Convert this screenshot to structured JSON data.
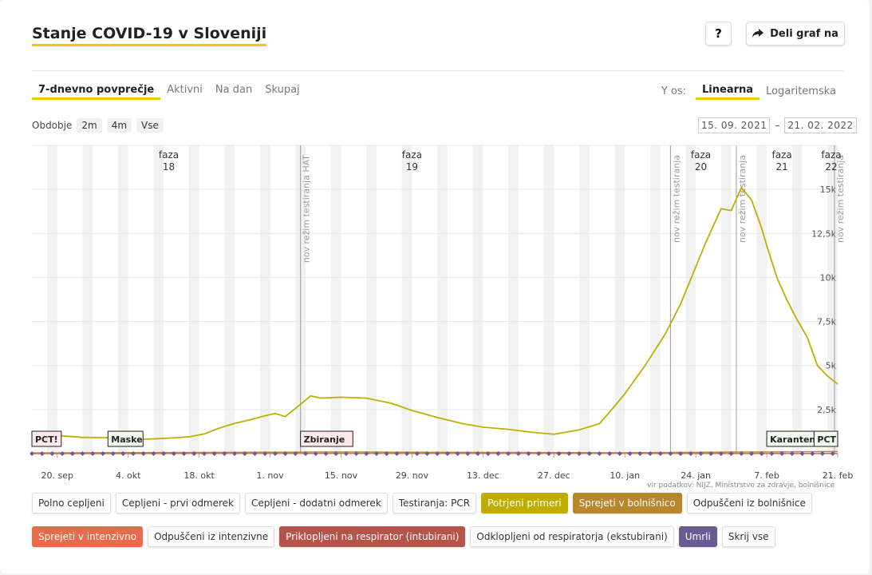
{
  "header": {
    "title": "Stanje COVID-19 v Sloveniji",
    "help_label": "?",
    "share_label": "Deli graf na"
  },
  "tabs": [
    {
      "label": "7-dnevno povprečje",
      "active": true
    },
    {
      "label": "Aktivni",
      "active": false
    },
    {
      "label": "Na dan",
      "active": false
    },
    {
      "label": "Skupaj",
      "active": false
    }
  ],
  "yaxis_toggle": {
    "label": "Y os:",
    "options": [
      {
        "label": "Linearna",
        "active": true
      },
      {
        "label": "Logaritemska",
        "active": false
      }
    ]
  },
  "period": {
    "label": "Obdobje",
    "buttons": [
      "2m",
      "4m",
      "Vse"
    ],
    "from": "15. 09. 2021",
    "dash": "–",
    "to": "21. 02. 2022"
  },
  "source_note": "vir podatkov: NIJZ, Ministrstvo za zdravje, bolnišnice",
  "legend": [
    {
      "label": "Polno cepljeni",
      "on": false,
      "color": ""
    },
    {
      "label": "Cepljeni - prvi odmerek",
      "on": false,
      "color": ""
    },
    {
      "label": "Cepljeni - dodatni odmerek",
      "on": false,
      "color": ""
    },
    {
      "label": "Testiranja: PCR",
      "on": false,
      "color": ""
    },
    {
      "label": "Potrjeni primeri",
      "on": true,
      "color": "#bfae00"
    },
    {
      "label": "Sprejeti v bolnišnico",
      "on": true,
      "color": "#b8862b"
    },
    {
      "label": "Odpuščeni iz bolnišnice",
      "on": false,
      "color": ""
    },
    {
      "label": "Sprejeti v intenzivno",
      "on": true,
      "color": "#e66c4c"
    },
    {
      "label": "Odpuščeni iz intenzivne",
      "on": false,
      "color": ""
    },
    {
      "label": "Priklopljeni na respirator (intubirani)",
      "on": true,
      "color": "#b5544b"
    },
    {
      "label": "Odklopljeni od respiratorja (ekstubirani)",
      "on": false,
      "color": ""
    },
    {
      "label": "Umrli",
      "on": true,
      "color": "#6b5b95"
    },
    {
      "label": "Skrij vse",
      "on": false,
      "color": ""
    }
  ],
  "chart_data": {
    "type": "line",
    "x_start": "2021-09-15",
    "x_end": "2022-02-21",
    "ylim": [
      0,
      17500
    ],
    "y_ticks": [
      2500,
      5000,
      7500,
      10000,
      12500,
      15000
    ],
    "y_tick_labels": [
      "2,5k",
      "5k",
      "7,5k",
      "10k",
      "12,5k",
      "15k"
    ],
    "x_ticks": [
      {
        "date": "2021-09-20",
        "label": "20. sep"
      },
      {
        "date": "2021-10-04",
        "label": "4. okt"
      },
      {
        "date": "2021-10-18",
        "label": "18. okt"
      },
      {
        "date": "2021-11-01",
        "label": "1. nov"
      },
      {
        "date": "2021-11-15",
        "label": "15. nov"
      },
      {
        "date": "2021-11-29",
        "label": "29. nov"
      },
      {
        "date": "2021-12-13",
        "label": "13. dec"
      },
      {
        "date": "2021-12-27",
        "label": "27. dec"
      },
      {
        "date": "2022-01-10",
        "label": "10. jan"
      },
      {
        "date": "2022-01-24",
        "label": "24. jan"
      },
      {
        "date": "2022-02-07",
        "label": "7. feb"
      },
      {
        "date": "2022-02-21",
        "label": "21. feb"
      }
    ],
    "phases": [
      {
        "date": "2021-10-12",
        "label1": "faza",
        "label2": "18"
      },
      {
        "date": "2021-11-29",
        "label1": "faza",
        "label2": "19"
      },
      {
        "date": "2022-01-25",
        "label1": "faza",
        "label2": "20"
      },
      {
        "date": "2022-02-10",
        "label1": "faza",
        "label2": "21"
      },
      {
        "date": "2022-02-21",
        "label1": "faza",
        "label2": "22"
      }
    ],
    "markers": [
      {
        "date": "2021-11-07",
        "label": "nov režim testiranja HAT"
      },
      {
        "date": "2022-01-19",
        "label": "nov režim testiranja"
      },
      {
        "date": "2022-02-01",
        "label": "nov režim testiranja"
      },
      {
        "date": "2022-02-21",
        "label": "nov režim testiranja"
      }
    ],
    "events": [
      {
        "date": "2021-09-15",
        "label": "PCT!",
        "style": "pink"
      },
      {
        "date": "2021-09-30",
        "label": "Maske",
        "style": "green"
      },
      {
        "date": "2021-11-07",
        "label": "Zbiranje",
        "style": "pink"
      },
      {
        "date": "2022-02-07",
        "label": "Karantena",
        "style": "green"
      },
      {
        "date": "2022-02-17",
        "label": "PCT",
        "style": "green"
      }
    ],
    "series": [
      {
        "name": "Potrjeni primeri",
        "color": "#bfae00",
        "points": [
          [
            "2021-09-15",
            1150
          ],
          [
            "2021-09-20",
            1030
          ],
          [
            "2021-09-25",
            920
          ],
          [
            "2021-09-30",
            900
          ],
          [
            "2021-10-04",
            850
          ],
          [
            "2021-10-08",
            820
          ],
          [
            "2021-10-12",
            880
          ],
          [
            "2021-10-16",
            950
          ],
          [
            "2021-10-19",
            1120
          ],
          [
            "2021-10-22",
            1450
          ],
          [
            "2021-10-25",
            1720
          ],
          [
            "2021-10-28",
            1920
          ],
          [
            "2021-10-31",
            2150
          ],
          [
            "2021-11-02",
            2280
          ],
          [
            "2021-11-04",
            2100
          ],
          [
            "2021-11-07",
            2800
          ],
          [
            "2021-11-09",
            3280
          ],
          [
            "2021-11-11",
            3150
          ],
          [
            "2021-11-15",
            3200
          ],
          [
            "2021-11-20",
            3150
          ],
          [
            "2021-11-25",
            2850
          ],
          [
            "2021-11-29",
            2450
          ],
          [
            "2021-12-04",
            2050
          ],
          [
            "2021-12-09",
            1700
          ],
          [
            "2021-12-13",
            1500
          ],
          [
            "2021-12-18",
            1380
          ],
          [
            "2021-12-23",
            1200
          ],
          [
            "2021-12-27",
            1100
          ],
          [
            "2022-01-01",
            1350
          ],
          [
            "2022-01-05",
            1700
          ],
          [
            "2022-01-08",
            2700
          ],
          [
            "2022-01-10",
            3400
          ],
          [
            "2022-01-14",
            5000
          ],
          [
            "2022-01-18",
            6800
          ],
          [
            "2022-01-21",
            8500
          ],
          [
            "2022-01-24",
            10600
          ],
          [
            "2022-01-26",
            12000
          ],
          [
            "2022-01-29",
            13900
          ],
          [
            "2022-01-31",
            13800
          ],
          [
            "2022-02-02",
            15100
          ],
          [
            "2022-02-04",
            14400
          ],
          [
            "2022-02-06",
            12800
          ],
          [
            "2022-02-07",
            11800
          ],
          [
            "2022-02-09",
            10000
          ],
          [
            "2022-02-11",
            8700
          ],
          [
            "2022-02-13",
            7600
          ],
          [
            "2022-02-15",
            6600
          ],
          [
            "2022-02-17",
            5000
          ],
          [
            "2022-02-19",
            4400
          ],
          [
            "2022-02-21",
            3950
          ]
        ]
      },
      {
        "name": "Sprejeti v bolnišnico",
        "color": "#b8862b",
        "points": [
          [
            "2021-09-15",
            40
          ],
          [
            "2021-11-15",
            90
          ],
          [
            "2022-01-10",
            50
          ],
          [
            "2022-02-21",
            120
          ]
        ]
      },
      {
        "name": "Sprejeti v intenzivno",
        "color": "#e66c4c",
        "points": [
          [
            "2021-09-15",
            8
          ],
          [
            "2021-11-20",
            20
          ],
          [
            "2022-02-21",
            10
          ]
        ]
      },
      {
        "name": "Priklopljeni na respirator (intubirani)",
        "color": "#b5544b",
        "points": [
          [
            "2021-09-15",
            4
          ],
          [
            "2021-11-20",
            12
          ],
          [
            "2022-02-21",
            6
          ]
        ]
      },
      {
        "name": "Umrli",
        "color": "#6b5b95",
        "points": [
          [
            "2021-09-15",
            5
          ],
          [
            "2021-11-20",
            15
          ],
          [
            "2022-02-21",
            8
          ]
        ]
      }
    ]
  }
}
